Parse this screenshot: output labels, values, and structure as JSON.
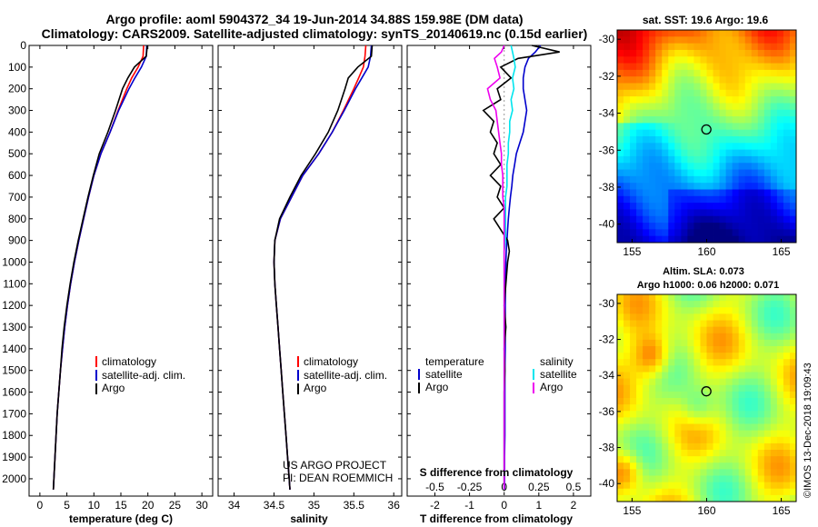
{
  "header": {
    "title_line1": "Argo profile: aoml 5904372_34 19-Jun-2014 34.88S 159.98E (DM data)",
    "title_line2": "Climatology: CARS2009. Satellite-adjusted climatology: synTS_20140619.nc (0.15d earlier)"
  },
  "credit": {
    "line1": "US ARGO PROJECT",
    "line2": "PI: DEAN ROEMMICH"
  },
  "copyright": "©IMOS 13-Dec-2018 19:09:43",
  "colors": {
    "climatology": "#ff0000",
    "satellite": "#0000cc",
    "argo": "#000000",
    "sal_satellite": "#00e5ee",
    "sal_argo": "#ee00ee"
  },
  "chart_data": [
    {
      "type": "line",
      "id": "temperature",
      "xlabel": "temperature (deg C)",
      "xlim": [
        -2,
        32
      ],
      "xticks": [
        0,
        5,
        10,
        15,
        20,
        25,
        30
      ],
      "ylim": [
        2080,
        0
      ],
      "yticks": [
        0,
        100,
        200,
        300,
        400,
        500,
        600,
        700,
        800,
        900,
        1000,
        1100,
        1200,
        1300,
        1400,
        1500,
        1600,
        1700,
        1800,
        1900,
        2000
      ],
      "legend": [
        "climatology",
        "satellite-adj. clim.",
        "Argo"
      ],
      "depth": [
        0,
        50,
        100,
        150,
        200,
        300,
        400,
        500,
        600,
        700,
        800,
        900,
        1000,
        1100,
        1200,
        1300,
        1400,
        1500,
        1600,
        1700,
        1800,
        1900,
        2000,
        2050
      ],
      "series": [
        {
          "name": "climatology",
          "values": [
            19.2,
            19.1,
            18.2,
            17.0,
            16.1,
            14.5,
            13.0,
            11.3,
            10.0,
            9.0,
            8.1,
            7.2,
            6.4,
            5.7,
            5.1,
            4.6,
            4.2,
            3.8,
            3.5,
            3.2,
            3.0,
            2.8,
            2.6,
            2.5
          ]
        },
        {
          "name": "satellite-adj. clim.",
          "values": [
            19.8,
            19.7,
            18.8,
            17.6,
            16.5,
            14.6,
            13.0,
            11.3,
            10.0,
            9.0,
            8.1,
            7.2,
            6.4,
            5.7,
            5.1,
            4.6,
            4.2,
            3.8,
            3.5,
            3.2,
            3.0,
            2.8,
            2.6,
            2.5
          ]
        },
        {
          "name": "Argo",
          "values": [
            19.9,
            19.7,
            17.5,
            16.3,
            15.3,
            14.0,
            12.6,
            11.0,
            9.9,
            8.9,
            8.0,
            7.1,
            6.3,
            5.6,
            5.0,
            4.5,
            4.1,
            3.8,
            3.5,
            3.2,
            3.0,
            2.8,
            2.6,
            2.5
          ]
        }
      ]
    },
    {
      "type": "line",
      "id": "salinity",
      "xlabel": "salinity",
      "xlim": [
        33.8,
        36.1
      ],
      "xticks": [
        34,
        34.5,
        35,
        35.5,
        36
      ],
      "ylim": [
        2080,
        0
      ],
      "legend": [
        "climatology",
        "satellite-adj. clim.",
        "Argo"
      ],
      "depth": [
        0,
        50,
        100,
        150,
        200,
        300,
        400,
        500,
        600,
        700,
        800,
        900,
        1000,
        1100,
        1200,
        1300,
        1400,
        1500,
        1600,
        1700,
        1800,
        1900,
        2000,
        2050
      ],
      "series": [
        {
          "name": "climatology",
          "values": [
            35.65,
            35.64,
            35.62,
            35.56,
            35.5,
            35.37,
            35.23,
            35.06,
            34.86,
            34.72,
            34.58,
            34.51,
            34.5,
            34.51,
            34.53,
            34.55,
            34.57,
            34.59,
            34.61,
            34.63,
            34.65,
            34.67,
            34.69,
            34.7
          ]
        },
        {
          "name": "satellite-adj. clim.",
          "values": [
            35.72,
            35.71,
            35.68,
            35.6,
            35.52,
            35.38,
            35.23,
            35.06,
            34.86,
            34.72,
            34.58,
            34.51,
            34.5,
            34.51,
            34.53,
            34.55,
            34.57,
            34.59,
            34.61,
            34.63,
            34.65,
            34.67,
            34.69,
            34.7
          ]
        },
        {
          "name": "Argo",
          "values": [
            35.73,
            35.72,
            35.55,
            35.43,
            35.39,
            35.3,
            35.18,
            35.02,
            34.84,
            34.7,
            34.57,
            34.51,
            34.5,
            34.51,
            34.53,
            34.55,
            34.57,
            34.59,
            34.61,
            34.63,
            34.65,
            34.67,
            34.69,
            34.7
          ]
        }
      ]
    },
    {
      "type": "line",
      "id": "difference",
      "xlabel": "T difference from climatology",
      "xlabel_top": "S difference from climatology",
      "xlim": [
        -2.8,
        2.5
      ],
      "xticks": [
        -2,
        -1,
        0,
        1,
        2
      ],
      "sticks": [
        -0.5,
        -0.25,
        0,
        0.25,
        0.5
      ],
      "stick_labels": [
        "-0.5",
        "-0.25",
        "0",
        "0.25",
        "0.5"
      ],
      "ylim": [
        2080,
        0
      ],
      "legend_temperature_header": "temperature",
      "legend_salinity_header": "salinity",
      "legend_temperature": [
        "satellite",
        "Argo"
      ],
      "legend_salinity": [
        "satellite",
        "Argo"
      ],
      "depth": [
        0,
        30,
        60,
        100,
        150,
        200,
        250,
        300,
        350,
        400,
        450,
        500,
        550,
        600,
        650,
        700,
        750,
        800,
        850,
        900,
        950,
        1000,
        1100,
        1200,
        1300,
        1400,
        1500,
        1600,
        1700,
        1800,
        1900,
        2000,
        2050
      ],
      "series": [
        {
          "name": "T satellite",
          "values": [
            1.05,
            0.9,
            0.7,
            0.6,
            0.55,
            0.55,
            0.6,
            0.65,
            0.6,
            0.55,
            0.45,
            0.35,
            0.3,
            0.25,
            0.22,
            0.18,
            0.15,
            0.12,
            0.1,
            0.08,
            0.06,
            0.05,
            0.04,
            0.03,
            0.03,
            0.03,
            0.02,
            0.02,
            0.02,
            0.02,
            0.01,
            0.01,
            0.01
          ]
        },
        {
          "name": "T Argo",
          "values": [
            0.8,
            1.6,
            0.4,
            -0.1,
            0.2,
            -0.2,
            -0.1,
            -0.6,
            -0.3,
            -0.4,
            -0.2,
            -0.3,
            -0.1,
            -0.4,
            -0.1,
            -0.2,
            0.0,
            -0.3,
            -0.1,
            0.1,
            0.15,
            0.1,
            0.05,
            0.0,
            0.05,
            0.0,
            0.02,
            0.0,
            0.0,
            0.0,
            0.0,
            0.0,
            0.0
          ]
        },
        {
          "name": "S satellite",
          "values": [
            0.05,
            0.06,
            0.07,
            0.08,
            0.06,
            0.07,
            0.05,
            0.06,
            0.04,
            0.04,
            0.03,
            0.03,
            0.02,
            0.02,
            0.02,
            0.01,
            0.01,
            0.01,
            0.01,
            0.01,
            0.0,
            0.0,
            0.0,
            0.0,
            0.0,
            0.0,
            0.0,
            0.0,
            0.0,
            0.0,
            0.0,
            0.0,
            0.0
          ]
        },
        {
          "name": "S Argo",
          "values": [
            0.0,
            -0.02,
            -0.07,
            -0.05,
            -0.03,
            -0.12,
            -0.1,
            -0.06,
            -0.05,
            -0.04,
            -0.03,
            -0.02,
            -0.02,
            -0.01,
            -0.01,
            -0.01,
            0.0,
            0.0,
            0.0,
            0.0,
            0.0,
            0.0,
            0.0,
            0.0,
            0.0,
            0.0,
            0.0,
            0.0,
            0.0,
            0.0,
            0.0,
            0.0,
            0.0
          ]
        }
      ]
    },
    {
      "type": "heatmap",
      "id": "sst-map",
      "title": "sat. SST: 19.6 Argo: 19.6",
      "xticks": [
        155,
        160,
        165
      ],
      "yticks": [
        -30,
        -32,
        -34,
        -36,
        -38,
        -40
      ],
      "xlim": [
        154,
        166
      ],
      "ylim": [
        -41,
        -29.5
      ],
      "marker": {
        "lon": 159.98,
        "lat": -34.88
      }
    },
    {
      "type": "heatmap",
      "id": "sla-map",
      "title_line1": "Altim. SLA: 0.073",
      "title_line2": "Argo h1000: 0.06 h2000: 0.071",
      "xticks": [
        155,
        160,
        165
      ],
      "yticks": [
        -30,
        -32,
        -34,
        -36,
        -38,
        -40
      ],
      "xlim": [
        154,
        166
      ],
      "ylim": [
        -41,
        -29.5
      ],
      "marker": {
        "lon": 159.98,
        "lat": -34.88
      }
    }
  ]
}
